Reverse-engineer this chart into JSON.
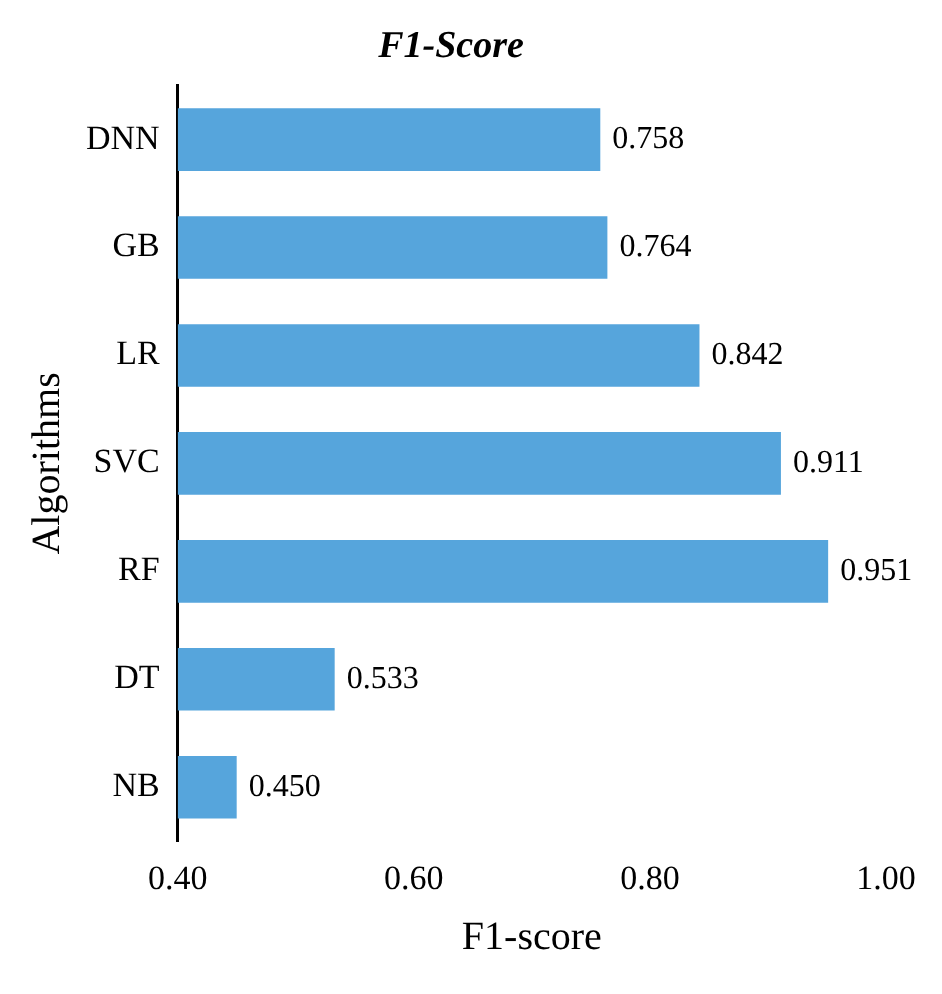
{
  "chart_data": {
    "type": "bar",
    "orientation": "horizontal",
    "title": "F1-Score",
    "xlabel": "F1-score",
    "ylabel": "Algorithms",
    "categories": [
      "DNN",
      "GB",
      "LR",
      "SVC",
      "RF",
      "DT",
      "NB"
    ],
    "values": [
      0.758,
      0.764,
      0.842,
      0.911,
      0.951,
      0.533,
      0.45
    ],
    "value_labels": [
      "0.758",
      "0.764",
      "0.842",
      "0.911",
      "0.951",
      "0.533",
      "0.450"
    ],
    "color": "#56a5dc",
    "xlim": [
      0.4,
      1.0
    ],
    "xticks": [
      {
        "value": 0.4,
        "label": "0.40"
      },
      {
        "value": 0.6,
        "label": "0.60"
      },
      {
        "value": 0.8,
        "label": "0.80"
      },
      {
        "value": 1.0,
        "label": "1.00"
      }
    ],
    "grid": false,
    "legend": false
  }
}
